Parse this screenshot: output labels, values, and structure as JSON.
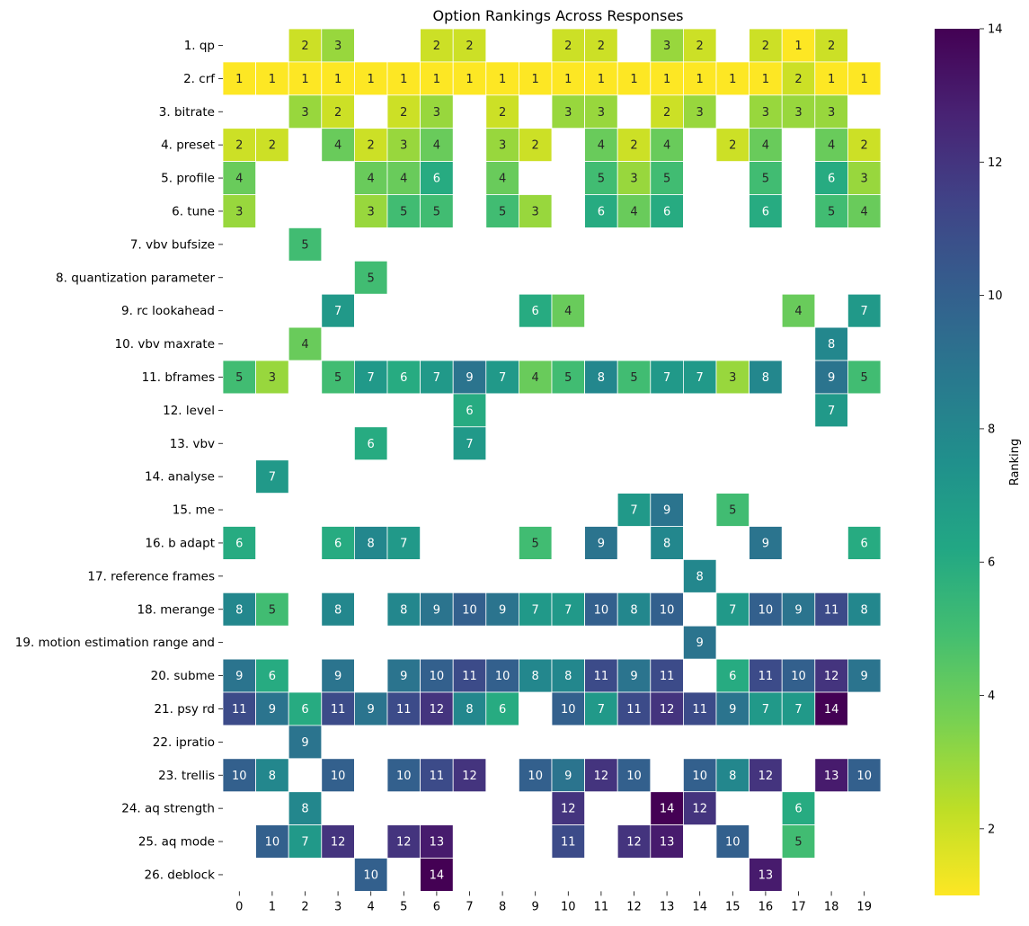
{
  "chart_data": {
    "type": "heatmap",
    "title": "Option Rankings Across Responses",
    "xlabel": "",
    "ylabel": "",
    "colorbar_label": "Ranking",
    "colormap": "viridis_r",
    "value_range": [
      1,
      14
    ],
    "colorbar_ticks": [
      2,
      4,
      6,
      8,
      10,
      12,
      14
    ],
    "columns": [
      "0",
      "1",
      "2",
      "3",
      "4",
      "5",
      "6",
      "7",
      "8",
      "9",
      "10",
      "11",
      "12",
      "13",
      "14",
      "15",
      "16",
      "17",
      "18",
      "19"
    ],
    "rows": [
      "1. qp",
      "2. crf",
      "3. bitrate",
      "4. preset",
      "5. profile",
      "6. tune",
      "7. vbv bufsize",
      "8. quantization parameter",
      "9. rc lookahead",
      "10. vbv maxrate",
      "11. bframes",
      "12. level",
      "13. vbv",
      "14. analyse",
      "15. me",
      "16. b adapt",
      "17. reference frames",
      "18. merange",
      "19. motion estimation range and",
      "20. subme",
      "21. psy rd",
      "22. ipratio",
      "23. trellis",
      "24. aq strength",
      "25. aq mode",
      "26. deblock"
    ],
    "values": [
      [
        null,
        null,
        2,
        3,
        null,
        null,
        2,
        2,
        null,
        null,
        2,
        2,
        null,
        3,
        2,
        null,
        2,
        1,
        2,
        null
      ],
      [
        1,
        1,
        1,
        1,
        1,
        1,
        1,
        1,
        1,
        1,
        1,
        1,
        1,
        1,
        1,
        1,
        1,
        2,
        1,
        1
      ],
      [
        null,
        null,
        3,
        2,
        null,
        2,
        3,
        null,
        2,
        null,
        3,
        3,
        null,
        2,
        3,
        null,
        3,
        3,
        3,
        null
      ],
      [
        2,
        2,
        null,
        4,
        2,
        3,
        4,
        null,
        3,
        2,
        null,
        4,
        2,
        4,
        null,
        2,
        4,
        null,
        4,
        2
      ],
      [
        4,
        null,
        null,
        null,
        4,
        4,
        6,
        null,
        4,
        null,
        null,
        5,
        3,
        5,
        null,
        null,
        5,
        null,
        6,
        3
      ],
      [
        3,
        null,
        null,
        null,
        3,
        5,
        5,
        null,
        5,
        3,
        null,
        6,
        4,
        6,
        null,
        null,
        6,
        null,
        5,
        4
      ],
      [
        null,
        null,
        5,
        null,
        null,
        null,
        null,
        null,
        null,
        null,
        null,
        null,
        null,
        null,
        null,
        null,
        null,
        null,
        null,
        null
      ],
      [
        null,
        null,
        null,
        null,
        5,
        null,
        null,
        null,
        null,
        null,
        null,
        null,
        null,
        null,
        null,
        null,
        null,
        null,
        null,
        null
      ],
      [
        null,
        null,
        null,
        7,
        null,
        null,
        null,
        null,
        null,
        6,
        4,
        null,
        null,
        null,
        null,
        null,
        null,
        4,
        null,
        7
      ],
      [
        null,
        null,
        4,
        null,
        null,
        null,
        null,
        null,
        null,
        null,
        null,
        null,
        null,
        null,
        null,
        null,
        null,
        null,
        8,
        null
      ],
      [
        5,
        3,
        null,
        5,
        7,
        6,
        7,
        9,
        7,
        4,
        5,
        8,
        5,
        7,
        7,
        3,
        8,
        null,
        9,
        5
      ],
      [
        null,
        null,
        null,
        null,
        null,
        null,
        null,
        6,
        null,
        null,
        null,
        null,
        null,
        null,
        null,
        null,
        null,
        null,
        7,
        null
      ],
      [
        null,
        null,
        null,
        null,
        6,
        null,
        null,
        7,
        null,
        null,
        null,
        null,
        null,
        null,
        null,
        null,
        null,
        null,
        null,
        null
      ],
      [
        null,
        7,
        null,
        null,
        null,
        null,
        null,
        null,
        null,
        null,
        null,
        null,
        null,
        null,
        null,
        null,
        null,
        null,
        null,
        null
      ],
      [
        null,
        null,
        null,
        null,
        null,
        null,
        null,
        null,
        null,
        null,
        null,
        null,
        7,
        9,
        null,
        5,
        null,
        null,
        null,
        null
      ],
      [
        6,
        null,
        null,
        6,
        8,
        7,
        null,
        null,
        null,
        5,
        null,
        9,
        null,
        8,
        null,
        null,
        9,
        null,
        null,
        6
      ],
      [
        null,
        null,
        null,
        null,
        null,
        null,
        null,
        null,
        null,
        null,
        null,
        null,
        null,
        null,
        8,
        null,
        null,
        null,
        null,
        null
      ],
      [
        8,
        5,
        null,
        8,
        null,
        8,
        9,
        10,
        9,
        7,
        7,
        10,
        8,
        10,
        null,
        7,
        10,
        9,
        11,
        8
      ],
      [
        null,
        null,
        null,
        null,
        null,
        null,
        null,
        null,
        null,
        null,
        null,
        null,
        null,
        null,
        9,
        null,
        null,
        null,
        null,
        null
      ],
      [
        9,
        6,
        null,
        9,
        null,
        9,
        10,
        11,
        10,
        8,
        8,
        11,
        9,
        11,
        null,
        6,
        11,
        10,
        12,
        9
      ],
      [
        11,
        9,
        6,
        11,
        9,
        11,
        12,
        8,
        6,
        null,
        10,
        7,
        11,
        12,
        11,
        9,
        7,
        7,
        14,
        null
      ],
      [
        null,
        null,
        9,
        null,
        null,
        null,
        null,
        null,
        null,
        null,
        null,
        null,
        null,
        null,
        null,
        null,
        null,
        null,
        null,
        null
      ],
      [
        10,
        8,
        null,
        10,
        null,
        10,
        11,
        12,
        null,
        10,
        9,
        12,
        10,
        null,
        10,
        8,
        12,
        null,
        13,
        10
      ],
      [
        null,
        null,
        8,
        null,
        null,
        null,
        null,
        null,
        null,
        null,
        12,
        null,
        null,
        14,
        12,
        null,
        null,
        6,
        null,
        null
      ],
      [
        null,
        10,
        7,
        12,
        null,
        12,
        13,
        null,
        null,
        null,
        11,
        null,
        12,
        13,
        null,
        10,
        null,
        5,
        null,
        null
      ],
      [
        null,
        null,
        null,
        null,
        10,
        null,
        14,
        null,
        null,
        null,
        null,
        null,
        null,
        null,
        null,
        null,
        13,
        null,
        null,
        null
      ]
    ]
  }
}
